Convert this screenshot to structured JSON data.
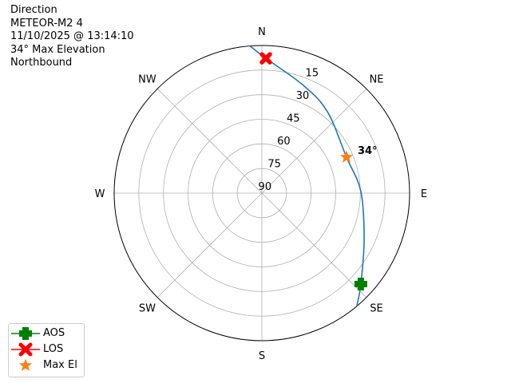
{
  "title_lines": [
    "Direction",
    "METEOR-M2 4",
    "11/10/2025 @ 13:14:10",
    "34° Max Elevation",
    "Northbound"
  ],
  "chart_data": {
    "type": "polar-line",
    "theta_direction": "clockwise",
    "theta_zero": "north",
    "radial_axis": "elevation (90 at center, 0 at edge)",
    "rlim": [
      90,
      0
    ],
    "direction_labels": [
      {
        "label": "N",
        "az": 0
      },
      {
        "label": "NE",
        "az": 45
      },
      {
        "label": "E",
        "az": 90
      },
      {
        "label": "SE",
        "az": 135
      },
      {
        "label": "S",
        "az": 180
      },
      {
        "label": "SW",
        "az": 225
      },
      {
        "label": "W",
        "az": 270
      },
      {
        "label": "NW",
        "az": 315
      }
    ],
    "radial_ticks": [
      15,
      30,
      45,
      60,
      75,
      90
    ],
    "grid": true,
    "track": {
      "color": "#1f77b4",
      "points": [
        {
          "az": 140,
          "el": 0
        },
        {
          "az": 132.6,
          "el": 8.1
        },
        {
          "az": 114.4,
          "el": 21.6
        },
        {
          "az": 89,
          "el": 29.7
        },
        {
          "az": 67,
          "el": 34
        },
        {
          "az": 38.8,
          "el": 26.3
        },
        {
          "az": 21,
          "el": 19.6
        },
        {
          "az": 1.7,
          "el": 7.8
        },
        {
          "az": 355.4,
          "el": 0
        }
      ]
    },
    "markers": {
      "aos": {
        "az": 132.6,
        "el": 8.1,
        "color": "#008000"
      },
      "los": {
        "az": 1.7,
        "el": 7.8,
        "color": "#ff0000"
      },
      "max_el": {
        "az": 67,
        "el": 34,
        "color": "#ff7f0e",
        "label": "34°"
      }
    },
    "legend": {
      "placement": "lower-left",
      "entries": [
        "AOS",
        "LOS",
        "Max El"
      ]
    }
  }
}
